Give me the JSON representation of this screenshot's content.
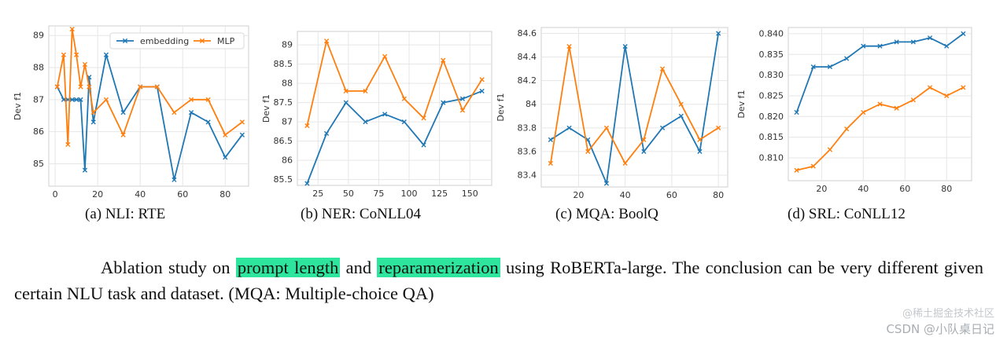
{
  "chart_data": [
    {
      "type": "line",
      "title": "",
      "xlabel": "",
      "ylabel": "Dev f1",
      "xlim": [
        -3,
        91
      ],
      "ylim": [
        84.3,
        89.3
      ],
      "xticks": [
        0,
        20,
        40,
        60,
        80
      ],
      "yticks": [
        85,
        86,
        87,
        88,
        89
      ],
      "grid": true,
      "legend": "top-right",
      "series": [
        {
          "name": "embedding",
          "color": "#1f77b4",
          "x": [
            1,
            4,
            6,
            8,
            10,
            12,
            14,
            16,
            18,
            24,
            32,
            40,
            48,
            56,
            64,
            72,
            80,
            88
          ],
          "y": [
            87.4,
            87.0,
            87.0,
            87.0,
            87.0,
            87.0,
            84.8,
            87.7,
            86.3,
            88.4,
            86.6,
            87.4,
            87.4,
            84.5,
            86.6,
            86.3,
            85.2,
            85.9
          ]
        },
        {
          "name": "MLP",
          "color": "#ff7f0e",
          "x": [
            1,
            4,
            6,
            8,
            10,
            12,
            14,
            16,
            18,
            24,
            32,
            40,
            48,
            56,
            64,
            72,
            80,
            88
          ],
          "y": [
            87.4,
            88.4,
            85.6,
            89.2,
            88.4,
            87.4,
            88.1,
            87.4,
            86.6,
            87.0,
            85.9,
            87.4,
            87.4,
            86.6,
            87.0,
            87.0,
            85.9,
            86.3
          ]
        }
      ]
    },
    {
      "type": "line",
      "title": "",
      "xlabel": "",
      "ylabel": "Dev f1",
      "xlim": [
        8,
        168
      ],
      "ylim": [
        85.35,
        89.35
      ],
      "xticks": [
        25,
        50,
        75,
        100,
        125,
        150
      ],
      "yticks": [
        85.5,
        86.0,
        86.5,
        87.0,
        87.5,
        88.0,
        88.5,
        89.0
      ],
      "grid": true,
      "series": [
        {
          "color": "#1f77b4",
          "x": [
            16,
            32,
            48,
            64,
            80,
            96,
            112,
            128,
            144,
            160
          ],
          "y": [
            85.4,
            86.7,
            87.5,
            87.0,
            87.2,
            87.0,
            86.4,
            87.5,
            87.6,
            87.8
          ]
        },
        {
          "color": "#ff7f0e",
          "x": [
            16,
            32,
            48,
            64,
            80,
            96,
            112,
            128,
            144,
            160
          ],
          "y": [
            86.9,
            89.1,
            87.8,
            87.8,
            88.7,
            87.6,
            87.1,
            88.6,
            87.3,
            88.1
          ]
        }
      ]
    },
    {
      "type": "line",
      "title": "",
      "xlabel": "",
      "ylabel": "Dev f1",
      "xlim": [
        4,
        84
      ],
      "ylim": [
        83.3,
        84.65
      ],
      "xticks": [
        20,
        40,
        60,
        80
      ],
      "yticks": [
        83.4,
        83.6,
        83.8,
        84.0,
        84.2,
        84.4,
        84.6
      ],
      "grid": true,
      "series": [
        {
          "color": "#1f77b4",
          "x": [
            8,
            16,
            24,
            32,
            40,
            48,
            56,
            64,
            72,
            80
          ],
          "y": [
            83.7,
            83.8,
            83.7,
            83.33,
            84.49,
            83.6,
            83.8,
            83.9,
            83.6,
            84.6
          ]
        },
        {
          "color": "#ff7f0e",
          "x": [
            8,
            16,
            24,
            32,
            40,
            48,
            56,
            64,
            72,
            80
          ],
          "y": [
            83.5,
            84.49,
            83.6,
            83.8,
            83.5,
            83.7,
            84.3,
            84.0,
            83.7,
            83.8
          ]
        }
      ]
    },
    {
      "type": "line",
      "title": "",
      "xlabel": "",
      "ylabel": "Dev f1",
      "xlim": [
        4,
        92
      ],
      "ylim": [
        0.8045,
        0.8415
      ],
      "xticks": [
        20,
        40,
        60,
        80
      ],
      "yticks": [
        0.81,
        0.815,
        0.82,
        0.825,
        0.83,
        0.835,
        0.84
      ],
      "ytick_labels": [
        "0.810",
        "0.815",
        "0.820",
        "0.825",
        "0.830",
        "0.835",
        "0.840"
      ],
      "grid": true,
      "series": [
        {
          "color": "#1f77b4",
          "x": [
            8,
            16,
            24,
            32,
            40,
            48,
            56,
            64,
            72,
            80,
            88
          ],
          "y": [
            0.821,
            0.832,
            0.832,
            0.834,
            0.837,
            0.837,
            0.838,
            0.838,
            0.839,
            0.837,
            0.84
          ]
        },
        {
          "color": "#ff7f0e",
          "x": [
            8,
            16,
            24,
            32,
            40,
            48,
            56,
            64,
            72,
            80,
            88
          ],
          "y": [
            0.807,
            0.808,
            0.812,
            0.817,
            0.821,
            0.823,
            0.822,
            0.824,
            0.827,
            0.825,
            0.827
          ]
        }
      ]
    }
  ],
  "captions": [
    "(a)  NLI: RTE",
    "(b)  NER: CoNLL04",
    "(c)  MQA: BoolQ",
    "(d)  SRL: CoNLL12"
  ],
  "paragraph": {
    "lead": "Ablation study on ",
    "highlight1": "prompt length",
    "mid": " and ",
    "highlight2": "reparamerization",
    "tail": " using RoBERTa-large.  The conclusion can be very different given certain NLU task and dataset. (MQA: Multiple-choice QA)"
  },
  "watermark": "CSDN @小队桌日记",
  "watermark2": "@稀土掘金技术社区"
}
